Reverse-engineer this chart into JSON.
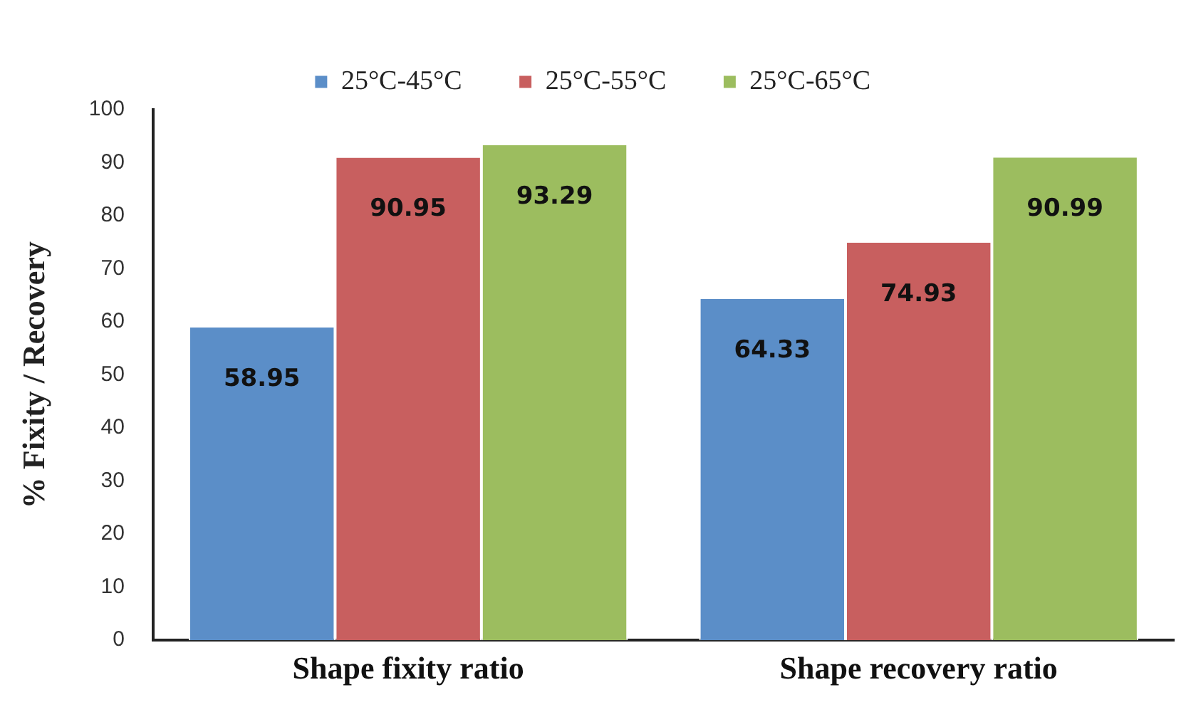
{
  "chart_data": {
    "type": "bar",
    "ylabel": "% Fixity / Recovery",
    "categories": [
      "Shape fixity ratio",
      "Shape recovery ratio"
    ],
    "series": [
      {
        "name": "25°C-45°C",
        "color": "#5b8ec8",
        "values": [
          58.95,
          64.33
        ]
      },
      {
        "name": "25°C-55°C",
        "color": "#c85f5f",
        "values": [
          90.95,
          74.93
        ]
      },
      {
        "name": "25°C-65°C",
        "color": "#9cbd5f",
        "values": [
          93.29,
          90.99
        ]
      }
    ],
    "ylim": [
      0,
      100
    ],
    "yticks": [
      0,
      10,
      20,
      30,
      40,
      50,
      60,
      70,
      80,
      90,
      100
    ],
    "grid": false,
    "legend": "top",
    "data_labels": true
  }
}
